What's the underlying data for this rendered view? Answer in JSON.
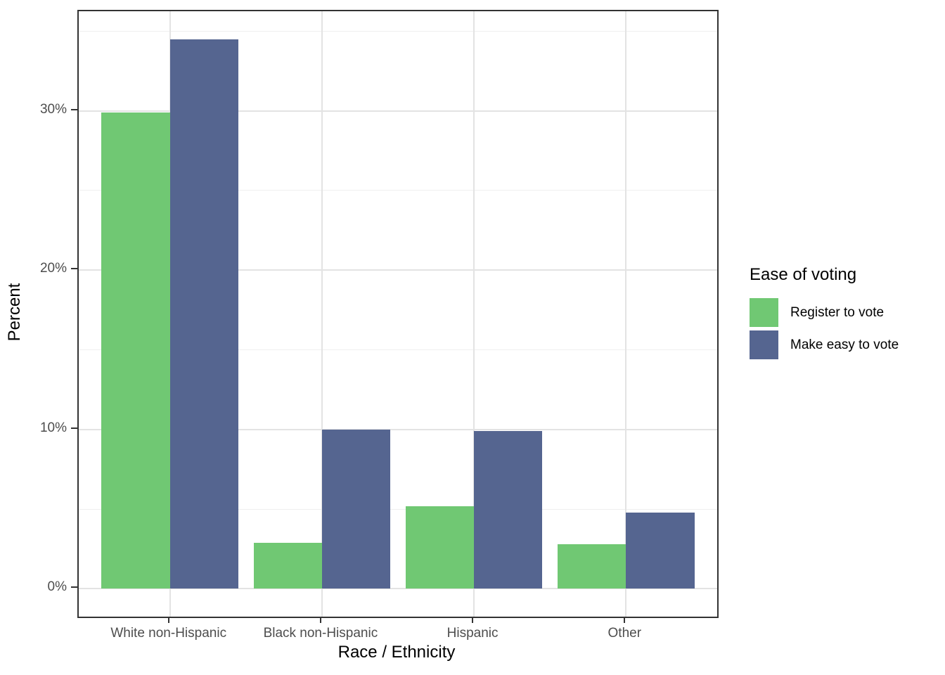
{
  "chart_data": {
    "type": "bar",
    "title": "",
    "xlabel": "Race / Ethnicity",
    "ylabel": "Percent",
    "categories": [
      "White non-Hispanic",
      "Black non-Hispanic",
      "Hispanic",
      "Other"
    ],
    "series": [
      {
        "name": "Register to vote",
        "color": "#70C873",
        "values": [
          29.9,
          2.9,
          5.2,
          2.8
        ]
      },
      {
        "name": "Make easy to vote",
        "color": "#556590",
        "values": [
          34.5,
          10.0,
          9.9,
          4.8
        ]
      }
    ],
    "legend": {
      "title": "Ease of voting",
      "position": "right"
    },
    "y_axis": {
      "range": [
        -1.75,
        36.25
      ],
      "ticks": [
        {
          "value": 0,
          "label": "0%"
        },
        {
          "value": 10,
          "label": "10%"
        },
        {
          "value": 20,
          "label": "20%"
        },
        {
          "value": 30,
          "label": "30%"
        }
      ],
      "minor": [
        5,
        15,
        25,
        35
      ]
    },
    "grid": {
      "horizontal": "major+minor",
      "vertical": "major"
    }
  },
  "styles": {
    "background": "#FFFFFF",
    "panel_border": "#333333",
    "grid_major": "#E3E3E3",
    "grid_minor": "#EFEFEF",
    "tick_color": "#333333",
    "tick_label_color": "#4D4D4D",
    "axis_title_color": "#000000"
  }
}
